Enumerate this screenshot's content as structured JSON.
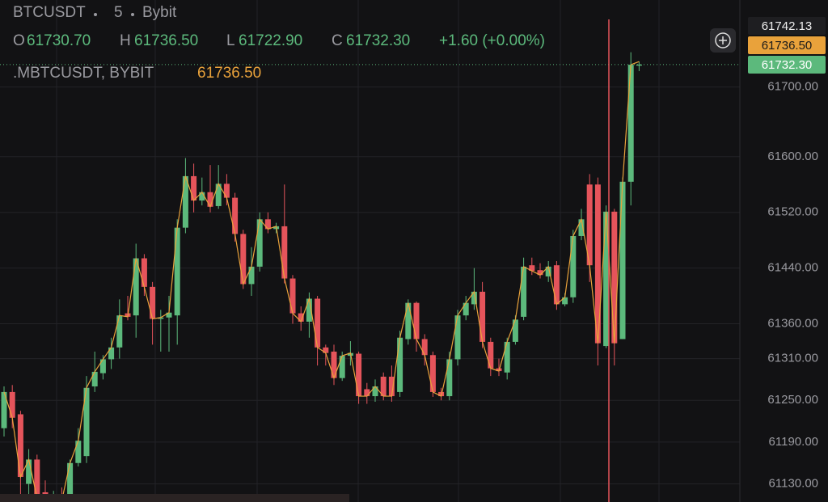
{
  "chart_data": {
    "type": "candlestick",
    "title": "BTCUSDT",
    "interval": "5",
    "exchange": "Bybit",
    "legend_keys": [
      "O",
      "H",
      "L",
      "C"
    ],
    "legend_values": [
      "61730.70",
      "61736.50",
      "61722.90",
      "61732.30"
    ],
    "change": "+1.60 (+0.00%)",
    "overlay": {
      "name": ".MBTCUSDT, BYBIT",
      "last": "61736.50",
      "color": "#e9a23b",
      "values": [
        61262,
        61225,
        61140,
        61165,
        61110,
        61104,
        61112,
        61106,
        61160,
        61192,
        61268,
        61291,
        61309,
        61326,
        61372,
        61370,
        61454,
        61413,
        61367,
        61369,
        61376,
        61498,
        61572,
        61537,
        61549,
        61528,
        61561,
        61541,
        61489,
        61417,
        61442,
        61510,
        61496,
        61500,
        61425,
        61375,
        61363,
        61396,
        61326,
        61318,
        61282,
        61314,
        61318,
        61256,
        61256,
        61270,
        61256,
        61256,
        61340,
        61390,
        61338,
        61315,
        61262,
        61256,
        61309,
        61372,
        61390,
        61406,
        61334,
        61296,
        61292,
        61334,
        61366,
        61442,
        61436,
        61430,
        61442,
        61388,
        61398,
        61486,
        61510,
        61444,
        61332,
        61521,
        61332,
        61564,
        61732,
        61736.5
      ]
    },
    "price_badges": [
      "61742.13",
      "61736.50",
      "61732.30"
    ],
    "up_color": "#5cb97c",
    "down_color": "#e5545b",
    "open": [
      61210,
      61262,
      61230,
      61130,
      61165,
      61118,
      61104,
      61112,
      61108,
      61160,
      61170,
      61270,
      61289,
      61309,
      61326,
      61375,
      61372,
      61454,
      61413,
      61367,
      61369,
      61372,
      61498,
      61572,
      61537,
      61549,
      61529,
      61561,
      61541,
      61489,
      61417,
      61442,
      61510,
      61496,
      61500,
      61425,
      61375,
      61363,
      61396,
      61326,
      61320,
      61282,
      61314,
      61317,
      61266,
      61256,
      61284,
      61284,
      61262,
      61338,
      61390,
      61338,
      61315,
      61262,
      61256,
      61309,
      61372,
      61388,
      61406,
      61334,
      61296,
      61290,
      61334,
      61370,
      61444,
      61437,
      61428,
      61444,
      61388,
      61398,
      61486,
      61560,
      61560,
      61328,
      61521,
      61338,
      61564,
      61730.7
    ],
    "high": [
      61270,
      61272,
      61235,
      61180,
      61172,
      61135,
      61120,
      61125,
      61165,
      61210,
      61285,
      61320,
      61315,
      61340,
      61395,
      61400,
      61475,
      61460,
      61420,
      61380,
      61400,
      61510,
      61598,
      61590,
      61570,
      61588,
      61588,
      61575,
      61548,
      61495,
      61470,
      61520,
      61520,
      61505,
      61560,
      61430,
      61385,
      61405,
      61400,
      61330,
      61330,
      61320,
      61335,
      61320,
      61275,
      61280,
      61290,
      61300,
      61350,
      61395,
      61392,
      61345,
      61320,
      61268,
      61320,
      61380,
      61400,
      61440,
      61420,
      61340,
      61310,
      61340,
      61372,
      61455,
      61455,
      61447,
      61450,
      61450,
      61404,
      61495,
      61525,
      61575,
      61570,
      61530,
      61525,
      61570,
      61750,
      61736.5
    ],
    "low": [
      61198,
      61210,
      61110,
      61110,
      61105,
      61100,
      61100,
      61100,
      61100,
      61155,
      61160,
      61262,
      61280,
      61295,
      61310,
      61365,
      61340,
      61400,
      61330,
      61320,
      61320,
      61330,
      61490,
      61520,
      61530,
      61520,
      61525,
      61530,
      61478,
      61410,
      61400,
      61435,
      61490,
      61490,
      61418,
      61360,
      61350,
      61340,
      61300,
      61300,
      61272,
      61278,
      61300,
      61245,
      61245,
      61248,
      61250,
      61248,
      61255,
      61330,
      61320,
      61300,
      61255,
      61250,
      61250,
      61300,
      61365,
      61380,
      61325,
      61285,
      61285,
      61280,
      61330,
      61365,
      61430,
      61425,
      61420,
      61380,
      61385,
      61390,
      61480,
      61420,
      61300,
      61325,
      61300,
      61338,
      61530,
      61722.9
    ],
    "close": [
      61262,
      61225,
      61140,
      61165,
      61110,
      61104,
      61112,
      61106,
      61160,
      61192,
      61268,
      61291,
      61309,
      61326,
      61372,
      61370,
      61454,
      61413,
      61367,
      61369,
      61376,
      61498,
      61572,
      61537,
      61549,
      61528,
      61561,
      61541,
      61489,
      61417,
      61442,
      61510,
      61496,
      61500,
      61425,
      61375,
      61363,
      61396,
      61326,
      61318,
      61282,
      61314,
      61318,
      61256,
      61256,
      61270,
      61256,
      61256,
      61340,
      61390,
      61338,
      61315,
      61262,
      61256,
      61309,
      61372,
      61390,
      61406,
      61334,
      61296,
      61292,
      61334,
      61366,
      61442,
      61436,
      61430,
      61442,
      61388,
      61398,
      61486,
      61510,
      61444,
      61332,
      61521,
      61332,
      61564,
      61732,
      61732.3
    ],
    "ylim": [
      61104,
      61825
    ],
    "yticks": [
      {
        "value": 61130,
        "label": "61130.00"
      },
      {
        "value": 61190,
        "label": "61190.00"
      },
      {
        "value": 61250,
        "label": "61250.00"
      },
      {
        "value": 61310,
        "label": "61310.00"
      },
      {
        "value": 61360,
        "label": "61360.00"
      },
      {
        "value": 61440,
        "label": "61440.00"
      },
      {
        "value": 61520,
        "label": "61520.00"
      },
      {
        "value": 61600,
        "label": "61600.00"
      },
      {
        "value": 61700,
        "label": "61700.00"
      }
    ],
    "grid": true
  }
}
